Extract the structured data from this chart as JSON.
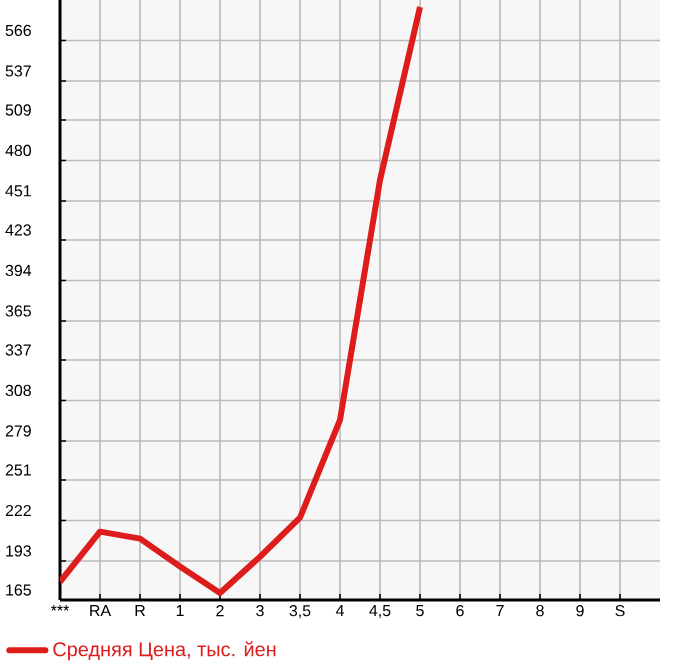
{
  "chart_data": {
    "type": "line",
    "categories": [
      "***",
      "RA",
      "R",
      "1",
      "2",
      "3",
      "3,5",
      "4",
      "4,5",
      "5",
      "6",
      "7",
      "8",
      "9",
      "S"
    ],
    "series": [
      {
        "name": "Средняя Цена, тыс. йен",
        "color": "#dd1c1c",
        "values": [
          178,
          214,
          209,
          189,
          170,
          196,
          224,
          294,
          466,
          590,
          null,
          null,
          null,
          null,
          null
        ]
      }
    ],
    "ylim": [
      165,
      595
    ],
    "yticks": [
      165,
      193,
      222,
      251,
      279,
      308,
      337,
      365,
      394,
      423,
      451,
      480,
      509,
      537,
      566
    ],
    "grid": true,
    "legend": "bottom",
    "marker": "none",
    "line_style": "solid"
  }
}
